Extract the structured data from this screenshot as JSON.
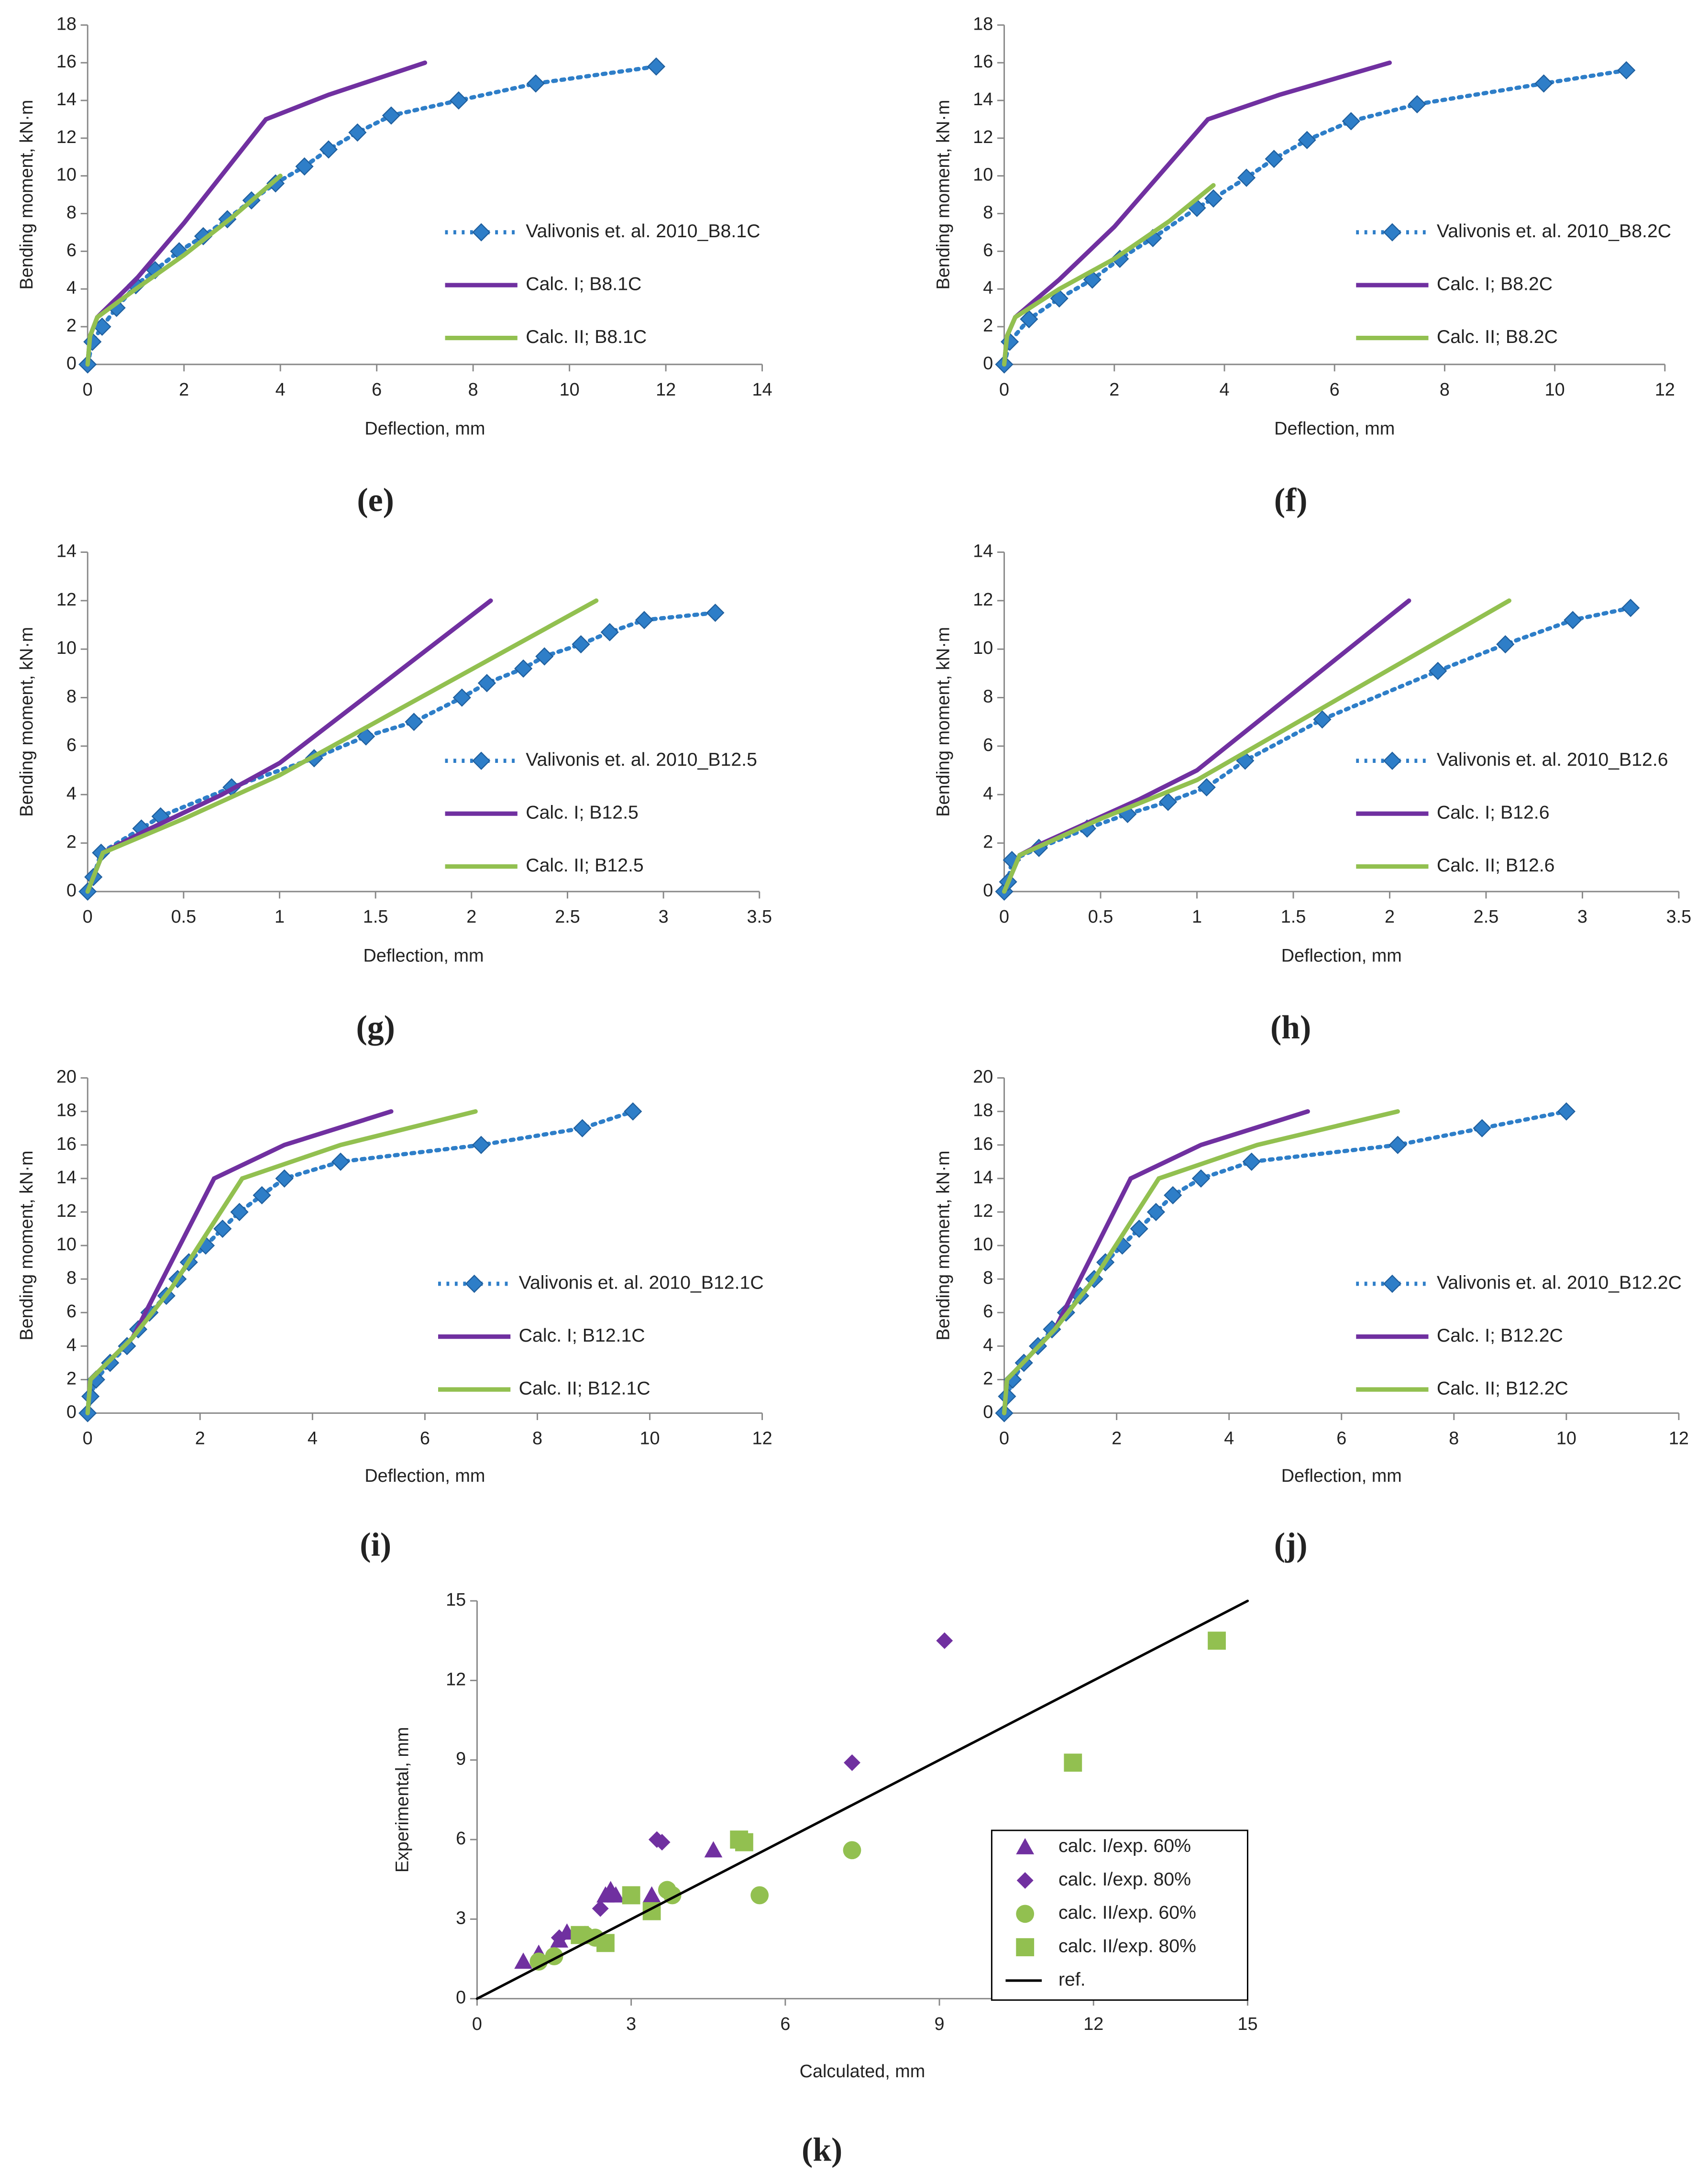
{
  "chart_data": [
    {
      "type": "line",
      "label": "(e)",
      "xlabel": "Deflection, mm",
      "ylabel": "Bending moment, kN·m",
      "xlim": [
        0,
        14
      ],
      "xticks": [
        0,
        2,
        4,
        6,
        8,
        10,
        12,
        14
      ],
      "ylim": [
        0,
        18
      ],
      "yticks": [
        0,
        2,
        4,
        6,
        8,
        10,
        12,
        14,
        16,
        18
      ],
      "series": [
        {
          "name": "Valivonis et. al. 2010_B8.1C",
          "color": "#2e7ec8",
          "line": "dotted",
          "marker": "diamond",
          "x": [
            0,
            0.1,
            0.3,
            0.6,
            1,
            1.4,
            1.9,
            2.4,
            2.9,
            3.4,
            3.9,
            4.5,
            5,
            5.6,
            6.3,
            7.7,
            9.3,
            11.8
          ],
          "values": [
            0,
            1.2,
            2,
            3,
            4.2,
            5,
            6,
            6.8,
            7.7,
            8.7,
            9.6,
            10.5,
            11.4,
            12.3,
            13.2,
            14,
            14.9,
            15.8
          ]
        },
        {
          "name": "Calc. I; B8.1C",
          "color": "#7030a0",
          "line": "solid",
          "marker": "none",
          "x": [
            0,
            0.05,
            0.2,
            1,
            2,
            3.7,
            5,
            7
          ],
          "values": [
            0,
            1.5,
            2.5,
            4.5,
            7.5,
            13,
            14.3,
            16
          ]
        },
        {
          "name": "Calc. II; B8.1C",
          "color": "#92c050",
          "line": "solid",
          "marker": "none",
          "x": [
            0,
            0.05,
            0.2,
            1,
            2,
            3,
            4
          ],
          "values": [
            0,
            1.5,
            2.5,
            4,
            5.8,
            7.8,
            10
          ]
        }
      ]
    },
    {
      "type": "line",
      "label": "(f)",
      "xlabel": "Deflection, mm",
      "ylabel": "Bending moment, kN·m",
      "xlim": [
        0,
        12
      ],
      "xticks": [
        0,
        2,
        4,
        6,
        8,
        10,
        12
      ],
      "ylim": [
        0,
        18
      ],
      "yticks": [
        0,
        2,
        4,
        6,
        8,
        10,
        12,
        14,
        16,
        18
      ],
      "series": [
        {
          "name": "Valivonis et. al. 2010_B8.2C",
          "color": "#2e7ec8",
          "line": "dotted",
          "marker": "diamond",
          "x": [
            0,
            0.1,
            0.45,
            1,
            1.6,
            2.1,
            2.7,
            3.5,
            3.8,
            4.4,
            4.9,
            5.5,
            6.3,
            7.5,
            9.8,
            11.3
          ],
          "values": [
            0,
            1.2,
            2.4,
            3.5,
            4.5,
            5.6,
            6.7,
            8.3,
            8.8,
            9.9,
            10.9,
            11.9,
            12.9,
            13.8,
            14.9,
            15.6
          ]
        },
        {
          "name": "Calc. I; B8.2C",
          "color": "#7030a0",
          "line": "solid",
          "marker": "none",
          "x": [
            0,
            0.05,
            0.2,
            1,
            2,
            3.7,
            5,
            7
          ],
          "values": [
            0,
            1.5,
            2.5,
            4.5,
            7.3,
            13,
            14.3,
            16
          ]
        },
        {
          "name": "Calc. II; B8.2C",
          "color": "#92c050",
          "line": "solid",
          "marker": "none",
          "x": [
            0,
            0.05,
            0.2,
            1,
            2,
            3,
            3.8
          ],
          "values": [
            0,
            1.5,
            2.5,
            4,
            5.6,
            7.6,
            9.5
          ]
        }
      ]
    },
    {
      "type": "line",
      "label": "(g)",
      "xlabel": "Deflection, mm",
      "ylabel": "Bending moment, kN·m",
      "xlim": [
        0,
        3.5
      ],
      "xticks": [
        0,
        0.5,
        1,
        1.5,
        2,
        2.5,
        3,
        3.5
      ],
      "ylim": [
        0,
        14
      ],
      "yticks": [
        0,
        2,
        4,
        6,
        8,
        10,
        12,
        14
      ],
      "series": [
        {
          "name": "Valivonis et. al. 2010_B12.5",
          "color": "#2e7ec8",
          "line": "dotted",
          "marker": "diamond",
          "x": [
            0,
            0.03,
            0.07,
            0.28,
            0.38,
            0.75,
            1.18,
            1.45,
            1.7,
            1.95,
            2.08,
            2.27,
            2.38,
            2.57,
            2.72,
            2.9,
            3.27
          ],
          "values": [
            0,
            0.6,
            1.6,
            2.6,
            3.1,
            4.3,
            5.5,
            6.4,
            7,
            8,
            8.6,
            9.2,
            9.7,
            10.2,
            10.7,
            11.2,
            11.5
          ]
        },
        {
          "name": "Calc. I; B12.5",
          "color": "#7030a0",
          "line": "solid",
          "marker": "none",
          "x": [
            0,
            0.08,
            0.3,
            0.7,
            1,
            2.1
          ],
          "values": [
            0,
            1.6,
            2.5,
            4,
            5.3,
            12
          ]
        },
        {
          "name": "Calc. II; B12.5",
          "color": "#92c050",
          "line": "solid",
          "marker": "none",
          "x": [
            0,
            0.08,
            0.5,
            1,
            2.65
          ],
          "values": [
            0,
            1.6,
            3,
            4.8,
            12
          ]
        }
      ]
    },
    {
      "type": "line",
      "label": "(h)",
      "xlabel": "Deflection, mm",
      "ylabel": "Bending moment, kN·m",
      "xlim": [
        0,
        3.5
      ],
      "xticks": [
        0,
        0.5,
        1,
        1.5,
        2,
        2.5,
        3,
        3.5
      ],
      "ylim": [
        0,
        14
      ],
      "yticks": [
        0,
        2,
        4,
        6,
        8,
        10,
        12,
        14
      ],
      "series": [
        {
          "name": "Valivonis et. al. 2010_B12.6",
          "color": "#2e7ec8",
          "line": "dotted",
          "marker": "diamond",
          "x": [
            0,
            0.02,
            0.04,
            0.18,
            0.43,
            0.64,
            0.85,
            1.05,
            1.25,
            1.65,
            2.25,
            2.6,
            2.95,
            3.25
          ],
          "values": [
            0,
            0.4,
            1.3,
            1.8,
            2.6,
            3.2,
            3.7,
            4.3,
            5.4,
            7.1,
            9.1,
            10.2,
            11.2,
            11.7
          ]
        },
        {
          "name": "Calc. I; B12.6",
          "color": "#7030a0",
          "line": "solid",
          "marker": "none",
          "x": [
            0,
            0.08,
            0.2,
            0.7,
            1,
            2.1
          ],
          "values": [
            0,
            1.5,
            2,
            3.8,
            5,
            12
          ]
        },
        {
          "name": "Calc. II; B12.6",
          "color": "#92c050",
          "line": "solid",
          "marker": "none",
          "x": [
            0,
            0.08,
            0.5,
            1,
            2.62
          ],
          "values": [
            0,
            1.5,
            3,
            4.6,
            12
          ]
        }
      ]
    },
    {
      "type": "line",
      "label": "(i)",
      "xlabel": "Deflection, mm",
      "ylabel": "Bending moment, kN·m",
      "xlim": [
        0,
        12
      ],
      "xticks": [
        0,
        2,
        4,
        6,
        8,
        10,
        12
      ],
      "ylim": [
        0,
        20
      ],
      "yticks": [
        0,
        2,
        4,
        6,
        8,
        10,
        12,
        14,
        16,
        18,
        20
      ],
      "series": [
        {
          "name": "Valivonis et. al. 2010_B12.1C",
          "color": "#2e7ec8",
          "line": "dotted",
          "marker": "diamond",
          "x": [
            0,
            0.05,
            0.15,
            0.4,
            0.7,
            0.9,
            1.1,
            1.4,
            1.6,
            1.8,
            2.1,
            2.4,
            2.7,
            3.1,
            3.5,
            4.5,
            7,
            8.8,
            9.7
          ],
          "values": [
            0,
            1,
            2,
            3,
            4,
            5,
            6,
            7,
            8,
            9,
            10,
            11,
            12,
            13,
            14,
            15,
            16,
            17,
            18
          ]
        },
        {
          "name": "Calc. I; B12.1C",
          "color": "#7030a0",
          "line": "solid",
          "marker": "none",
          "x": [
            0,
            0.05,
            0.8,
            2.25,
            3.5,
            5.4
          ],
          "values": [
            0,
            2,
            4.5,
            14,
            16,
            18
          ]
        },
        {
          "name": "Calc. II; B12.1C",
          "color": "#92c050",
          "line": "solid",
          "marker": "none",
          "x": [
            0,
            0.05,
            0.8,
            1.5,
            2.75,
            4.5,
            6.9
          ],
          "values": [
            0,
            2,
            4.5,
            7.5,
            14,
            16,
            18
          ]
        }
      ]
    },
    {
      "type": "line",
      "label": "(j)",
      "xlabel": "Deflection, mm",
      "ylabel": "Bending moment, kN·m",
      "xlim": [
        0,
        12
      ],
      "xticks": [
        0,
        2,
        4,
        6,
        8,
        10,
        12
      ],
      "ylim": [
        0,
        20
      ],
      "yticks": [
        0,
        2,
        4,
        6,
        8,
        10,
        12,
        14,
        16,
        18,
        20
      ],
      "series": [
        {
          "name": "Valivonis et. al. 2010_B12.2C",
          "color": "#2e7ec8",
          "line": "dotted",
          "marker": "diamond",
          "x": [
            0,
            0.05,
            0.15,
            0.35,
            0.6,
            0.85,
            1.1,
            1.35,
            1.6,
            1.8,
            2.1,
            2.4,
            2.7,
            3,
            3.5,
            4.4,
            7,
            8.5,
            10
          ],
          "values": [
            0,
            1,
            2,
            3,
            4,
            5,
            6,
            7,
            8,
            9,
            10,
            11,
            12,
            13,
            14,
            15,
            16,
            17,
            18
          ]
        },
        {
          "name": "Calc. I; B12.2C",
          "color": "#7030a0",
          "line": "solid",
          "marker": "none",
          "x": [
            0,
            0.05,
            0.9,
            2.25,
            3.5,
            5.4
          ],
          "values": [
            0,
            2,
            5,
            14,
            16,
            18
          ]
        },
        {
          "name": "Calc. II; B12.2C",
          "color": "#92c050",
          "line": "solid",
          "marker": "none",
          "x": [
            0,
            0.05,
            0.9,
            1.6,
            2.75,
            4.5,
            7
          ],
          "values": [
            0,
            2,
            5,
            8,
            14,
            16,
            18
          ]
        }
      ]
    },
    {
      "type": "scatter",
      "label": "(k)",
      "xlabel": "Calculated, mm",
      "ylabel": "Experimental, mm",
      "xlim": [
        0,
        15
      ],
      "xticks": [
        0,
        3,
        6,
        9,
        12,
        15
      ],
      "ylim": [
        0,
        15
      ],
      "yticks": [
        0,
        3,
        6,
        9,
        12,
        15
      ],
      "series": [
        {
          "name": "calc. I/exp. 60%",
          "color": "#7030a0",
          "line": "none",
          "marker": "triangle",
          "x": [
            0.9,
            1.2,
            1.6,
            1.75,
            2.5,
            2.6,
            2.7,
            3.4,
            4.6
          ],
          "values": [
            1.4,
            1.7,
            2.2,
            2.5,
            3.9,
            4.1,
            3.9,
            3.9,
            5.6
          ]
        },
        {
          "name": "calc. I/exp. 80%",
          "color": "#7030a0",
          "line": "none",
          "marker": "diamond",
          "x": [
            1.6,
            2.4,
            3.5,
            3.6,
            7.3,
            9.1
          ],
          "values": [
            2.3,
            3.4,
            6,
            5.9,
            8.9,
            13.5
          ]
        },
        {
          "name": "calc. II/exp. 60%",
          "color": "#92c050",
          "line": "none",
          "marker": "circle",
          "x": [
            1.2,
            1.5,
            2.1,
            2.3,
            3.7,
            3.8,
            5.5,
            7.3
          ],
          "values": [
            1.4,
            1.6,
            2.4,
            2.3,
            4.1,
            3.9,
            3.9,
            5.6
          ]
        },
        {
          "name": "calc. II/exp. 80%",
          "color": "#92c050",
          "line": "none",
          "marker": "square",
          "x": [
            2,
            2.5,
            3,
            3.4,
            5.1,
            5.2,
            11.6,
            14.4
          ],
          "values": [
            2.4,
            2.1,
            3.9,
            3.3,
            6,
            5.9,
            8.9,
            13.5
          ]
        },
        {
          "name": "ref.",
          "color": "#000000",
          "line": "solid",
          "marker": "none",
          "x": [
            0,
            15
          ],
          "values": [
            0,
            15
          ]
        }
      ]
    }
  ]
}
